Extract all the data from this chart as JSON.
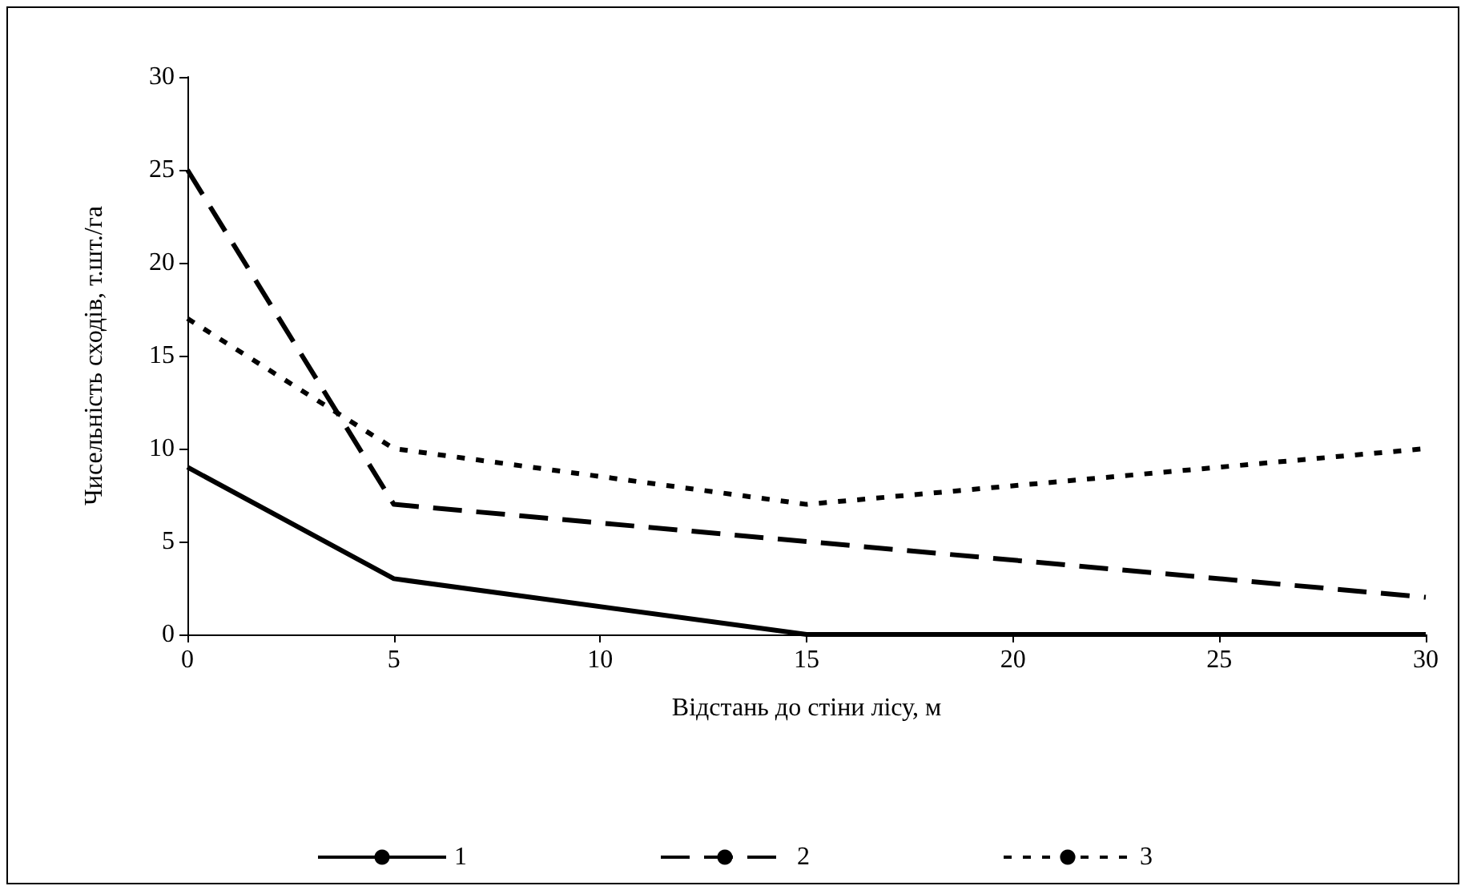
{
  "chart_data": {
    "type": "line",
    "xlabel": "Відстань до стіни лісу, м",
    "ylabel": "Чисельність сходів, т.шт./га",
    "xlim": [
      0,
      30
    ],
    "xticks": [
      0,
      5,
      10,
      15,
      20,
      25,
      30
    ],
    "ylim": [
      0,
      30
    ],
    "yticks": [
      0,
      5,
      10,
      15,
      20,
      25,
      30
    ],
    "grid": false,
    "legend": "bottom",
    "marker": "none",
    "series": [
      {
        "name": "1",
        "color": "#000000",
        "line_style": "solid",
        "x": [
          0,
          5,
          15,
          30
        ],
        "values": [
          9,
          3,
          0,
          0
        ]
      },
      {
        "name": "2",
        "color": "#000000",
        "line_style": "dashed",
        "x": [
          0,
          5,
          15,
          30
        ],
        "values": [
          25,
          7,
          5,
          2
        ]
      },
      {
        "name": "3",
        "color": "#000000",
        "line_style": "dotted",
        "x": [
          0,
          5,
          15,
          30
        ],
        "values": [
          17,
          10,
          7,
          10
        ]
      }
    ]
  }
}
